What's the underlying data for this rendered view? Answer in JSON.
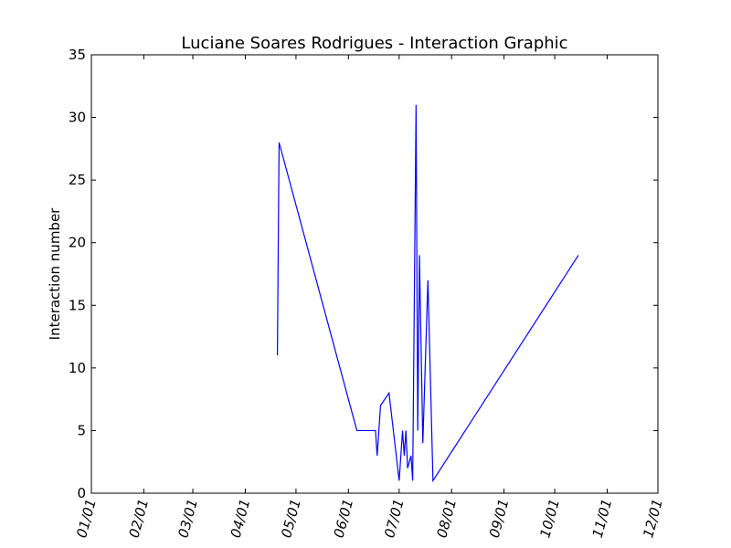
{
  "chart_data": {
    "type": "line",
    "title": "Luciane Soares Rodrigues - Interaction Graphic",
    "xlabel": "",
    "ylabel": "Interaction number",
    "x_axis": {
      "type": "date",
      "range": [
        "2016-01-01",
        "2016-12-01"
      ],
      "tick_values": [
        "2016-01-01",
        "2016-02-01",
        "2016-03-01",
        "2016-04-01",
        "2016-05-01",
        "2016-06-01",
        "2016-07-01",
        "2016-08-01",
        "2016-09-01",
        "2016-10-01",
        "2016-11-01",
        "2016-12-01"
      ],
      "tick_labels": [
        "01/01",
        "02/01",
        "03/01",
        "04/01",
        "05/01",
        "06/01",
        "07/01",
        "08/01",
        "09/01",
        "10/01",
        "11/01",
        "12/01"
      ]
    },
    "y_axis": {
      "range": [
        0,
        35
      ],
      "ticks": [
        0,
        5,
        10,
        15,
        20,
        25,
        30,
        35
      ]
    },
    "grid": false,
    "color": "#0000ff",
    "series": [
      {
        "points": [
          {
            "x": "2016-04-20",
            "y": 11
          },
          {
            "x": "2016-04-21",
            "y": 28
          },
          {
            "x": "2016-06-06",
            "y": 5
          },
          {
            "x": "2016-06-17",
            "y": 5
          },
          {
            "x": "2016-06-18",
            "y": 3
          },
          {
            "x": "2016-06-20",
            "y": 7
          },
          {
            "x": "2016-06-25",
            "y": 8
          },
          {
            "x": "2016-07-01",
            "y": 1
          },
          {
            "x": "2016-07-03",
            "y": 5
          },
          {
            "x": "2016-07-04",
            "y": 3
          },
          {
            "x": "2016-07-05",
            "y": 5
          },
          {
            "x": "2016-07-06",
            "y": 2
          },
          {
            "x": "2016-07-08",
            "y": 3
          },
          {
            "x": "2016-07-09",
            "y": 1
          },
          {
            "x": "2016-07-11",
            "y": 31
          },
          {
            "x": "2016-07-12",
            "y": 5
          },
          {
            "x": "2016-07-13",
            "y": 19
          },
          {
            "x": "2016-07-15",
            "y": 4
          },
          {
            "x": "2016-07-18",
            "y": 17
          },
          {
            "x": "2016-07-21",
            "y": 1
          },
          {
            "x": "2016-10-15",
            "y": 19
          }
        ]
      }
    ]
  }
}
